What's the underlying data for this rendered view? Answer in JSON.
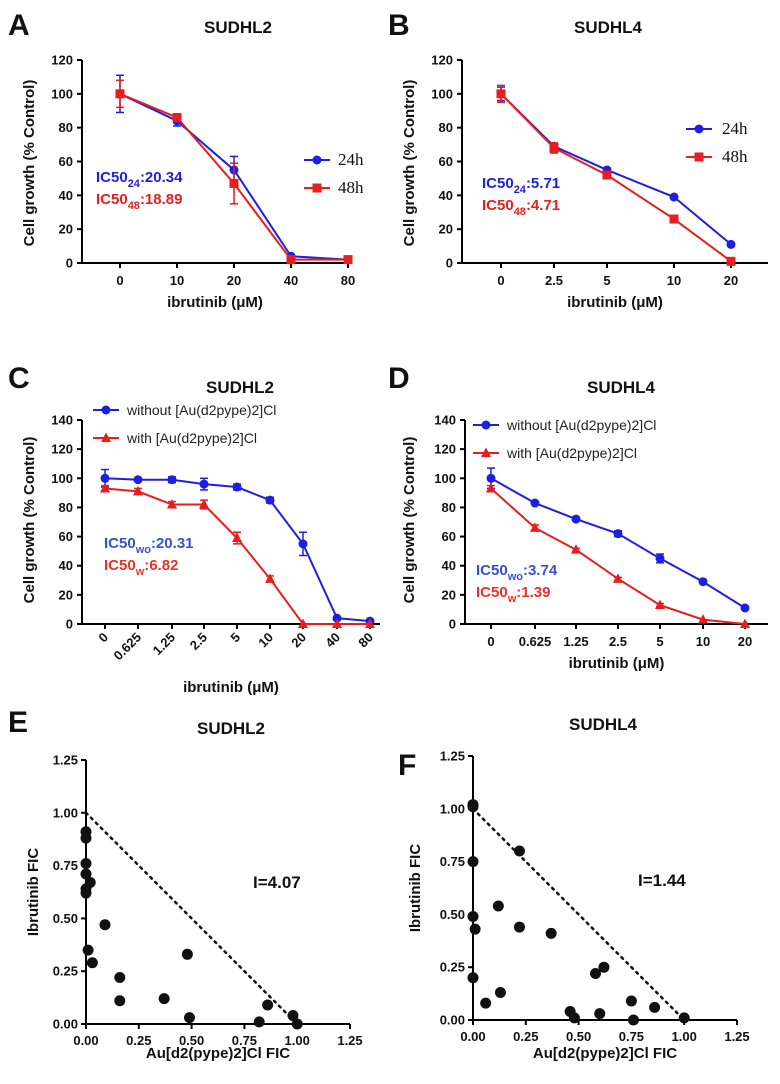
{
  "colors": {
    "blue": "#1f1fe0",
    "red": "#e61e1e",
    "ann_blue": "#3a4fd0",
    "ann_red": "#e8322e",
    "black": "#111111"
  },
  "chart_data": [
    {
      "id": "A",
      "letter": "A",
      "type": "line",
      "title": "SUDHL2",
      "xlabel": "ibrutinib (μM)",
      "ylabel": "Cell growth (% Control)",
      "categories": [
        "0",
        "10",
        "20",
        "40",
        "80"
      ],
      "ylim": [
        0,
        120
      ],
      "yticks": [
        0,
        20,
        40,
        60,
        80,
        100,
        120
      ],
      "series": [
        {
          "name": "24h",
          "color": "blue",
          "marker": "circle",
          "values": [
            100,
            84,
            55,
            4,
            2
          ],
          "errors": [
            11,
            3,
            8,
            0.5,
            0.5
          ]
        },
        {
          "name": "48h",
          "color": "red",
          "marker": "square",
          "values": [
            100,
            86,
            47,
            2,
            2
          ],
          "errors": [
            8,
            2,
            12,
            0.5,
            0.5
          ]
        }
      ],
      "legend": [
        {
          "label": "24h",
          "color": "blue",
          "marker": "circle"
        },
        {
          "label": "48h",
          "color": "red",
          "marker": "square"
        }
      ],
      "annotations": [
        {
          "main": "IC50",
          "sub": "24",
          "rest": ":20.34",
          "color": "blue"
        },
        {
          "main": "IC50",
          "sub": "48",
          "rest": ":18.89",
          "color": "red"
        }
      ]
    },
    {
      "id": "B",
      "letter": "B",
      "type": "line",
      "title": "SUDHL4",
      "xlabel": "ibrutinib (μM)",
      "ylabel": "Cell growth (% Control)",
      "categories": [
        "0",
        "2.5",
        "5",
        "10",
        "20"
      ],
      "ylim": [
        0,
        120
      ],
      "yticks": [
        0,
        20,
        40,
        60,
        80,
        100,
        120
      ],
      "series": [
        {
          "name": "24h",
          "color": "blue",
          "marker": "circle",
          "values": [
            100,
            69,
            55,
            39,
            11
          ],
          "errors": [
            4,
            2,
            1,
            1,
            1
          ]
        },
        {
          "name": "48h",
          "color": "red",
          "marker": "square",
          "values": [
            100,
            68,
            52,
            26,
            1
          ],
          "errors": [
            5,
            3,
            1,
            1,
            0.5
          ]
        }
      ],
      "legend": [
        {
          "label": "24h",
          "color": "blue",
          "marker": "circle"
        },
        {
          "label": "48h",
          "color": "red",
          "marker": "square"
        }
      ],
      "annotations": [
        {
          "main": "IC50",
          "sub": "24",
          "rest": ":5.71",
          "color": "blue"
        },
        {
          "main": "IC50",
          "sub": "48",
          "rest": ":4.71",
          "color": "red"
        }
      ]
    },
    {
      "id": "C",
      "letter": "C",
      "type": "line",
      "title": "SUDHL2",
      "xlabel": "ibrutinib (μM)",
      "ylabel": "Cell growth (% Control)",
      "categories": [
        "0",
        "0.625",
        "1.25",
        "2.5",
        "5",
        "10",
        "20",
        "40",
        "80"
      ],
      "ylim": [
        0,
        140
      ],
      "yticks": [
        0,
        20,
        40,
        60,
        80,
        100,
        120,
        140
      ],
      "series": [
        {
          "name": "without [Au(d2pype)2]Cl",
          "color": "blue",
          "marker": "circle",
          "values": [
            100,
            99,
            99,
            96,
            94,
            85,
            55,
            4,
            2
          ],
          "errors": [
            6,
            1,
            2,
            4,
            2,
            2,
            8,
            0.5,
            0.5
          ]
        },
        {
          "name": "with [Au(d2pype)2]Cl",
          "color": "red",
          "marker": "triangle",
          "values": [
            93,
            91,
            82,
            82,
            59,
            31,
            0,
            0,
            0
          ],
          "errors": [
            2,
            2,
            2,
            3,
            4,
            2,
            0,
            0,
            0
          ]
        }
      ],
      "legend": [
        {
          "label": "without [Au(d2pype)2]Cl",
          "color": "blue",
          "marker": "circle"
        },
        {
          "label": "with [Au(d2pype)2]Cl",
          "color": "red",
          "marker": "triangle"
        }
      ],
      "annotations": [
        {
          "main": "IC50",
          "sub": "wo",
          "rest": ":20.31",
          "color": "ann_blue"
        },
        {
          "main": "IC50",
          "sub": "w",
          "rest": ":6.82",
          "color": "ann_red"
        }
      ]
    },
    {
      "id": "D",
      "letter": "D",
      "type": "line",
      "title": "SUDHL4",
      "xlabel": "ibrutinib (μM)",
      "ylabel": "Cell growth (% Control)",
      "categories": [
        "0",
        "0.625",
        "1.25",
        "2.5",
        "5",
        "10",
        "20"
      ],
      "ylim": [
        0,
        140
      ],
      "yticks": [
        0,
        20,
        40,
        60,
        80,
        100,
        120,
        140
      ],
      "series": [
        {
          "name": "without [Au(d2pype)2]Cl",
          "color": "blue",
          "marker": "circle",
          "values": [
            100,
            83,
            72,
            62,
            45,
            29,
            11
          ],
          "errors": [
            7,
            1,
            1,
            2,
            3,
            1,
            1
          ]
        },
        {
          "name": "with [Au(d2pype)2]Cl",
          "color": "red",
          "marker": "triangle",
          "values": [
            93,
            66,
            51,
            31,
            13,
            3,
            0
          ],
          "errors": [
            2,
            2,
            1,
            1,
            1,
            0.5,
            0
          ]
        }
      ],
      "legend": [
        {
          "label": "without [Au(d2pype)2]Cl",
          "color": "blue",
          "marker": "circle"
        },
        {
          "label": "with [Au(d2pype)2]Cl",
          "color": "red",
          "marker": "triangle"
        }
      ],
      "annotations": [
        {
          "main": "IC50",
          "sub": "wo",
          "rest": ":3.74",
          "color": "ann_blue"
        },
        {
          "main": "IC50",
          "sub": "w",
          "rest": ":1.39",
          "color": "ann_red"
        }
      ]
    },
    {
      "id": "E",
      "letter": "E",
      "type": "scatter",
      "title": "SUDHL2",
      "xlabel": "Au[d2(pype)2]Cl FIC",
      "ylabel": "Ibrutinib FIC",
      "xlim": [
        0,
        1.25
      ],
      "ylim": [
        0,
        1.25
      ],
      "xticks": [
        "0.00",
        "0.25",
        "0.50",
        "0.75",
        "1.00",
        "1.25"
      ],
      "yticks": [
        "0.00",
        "0.25",
        "0.50",
        "0.75",
        "1.00",
        "1.25"
      ],
      "points": [
        [
          0,
          0.91
        ],
        [
          0,
          0.88
        ],
        [
          0,
          0.76
        ],
        [
          0,
          0.71
        ],
        [
          0,
          0.64
        ],
        [
          0,
          0.62
        ],
        [
          0.02,
          0.67
        ],
        [
          0.01,
          0.35
        ],
        [
          0.03,
          0.29
        ],
        [
          0.09,
          0.47
        ],
        [
          0.16,
          0.22
        ],
        [
          0.16,
          0.11
        ],
        [
          0.37,
          0.12
        ],
        [
          0.48,
          0.33
        ],
        [
          0.49,
          0.03
        ],
        [
          0.82,
          0.01
        ],
        [
          0.86,
          0.09
        ],
        [
          0.98,
          0.04
        ],
        [
          1.0,
          0
        ]
      ],
      "isobole": [
        [
          0,
          1
        ],
        [
          1,
          0
        ]
      ],
      "interaction_label": "I=4.07"
    },
    {
      "id": "F",
      "letter": "F",
      "type": "scatter",
      "title": "SUDHL4",
      "xlabel": "Au[d2(pype)2]Cl FIC",
      "ylabel": "Ibrutinib FIC",
      "xlim": [
        0,
        1.25
      ],
      "ylim": [
        0,
        1.25
      ],
      "xticks": [
        "0.00",
        "0.25",
        "0.50",
        "0.75",
        "1.00",
        "1.25"
      ],
      "yticks": [
        "0.00",
        "0.25",
        "0.50",
        "0.75",
        "1.00",
        "1.25"
      ],
      "points": [
        [
          0,
          1.02
        ],
        [
          0,
          1.01
        ],
        [
          0,
          0.75
        ],
        [
          0,
          0.49
        ],
        [
          0.01,
          0.43
        ],
        [
          0,
          0.2
        ],
        [
          0.06,
          0.08
        ],
        [
          0.12,
          0.54
        ],
        [
          0.13,
          0.13
        ],
        [
          0.22,
          0.8
        ],
        [
          0.22,
          0.44
        ],
        [
          0.37,
          0.41
        ],
        [
          0.46,
          0.04
        ],
        [
          0.48,
          0.01
        ],
        [
          0.58,
          0.22
        ],
        [
          0.62,
          0.25
        ],
        [
          0.6,
          0.03
        ],
        [
          0.75,
          0.09
        ],
        [
          0.76,
          0
        ],
        [
          0.86,
          0.06
        ],
        [
          1.0,
          0.01
        ]
      ],
      "isobole": [
        [
          0,
          1
        ],
        [
          1,
          0
        ]
      ],
      "interaction_label": "I=1.44"
    }
  ]
}
